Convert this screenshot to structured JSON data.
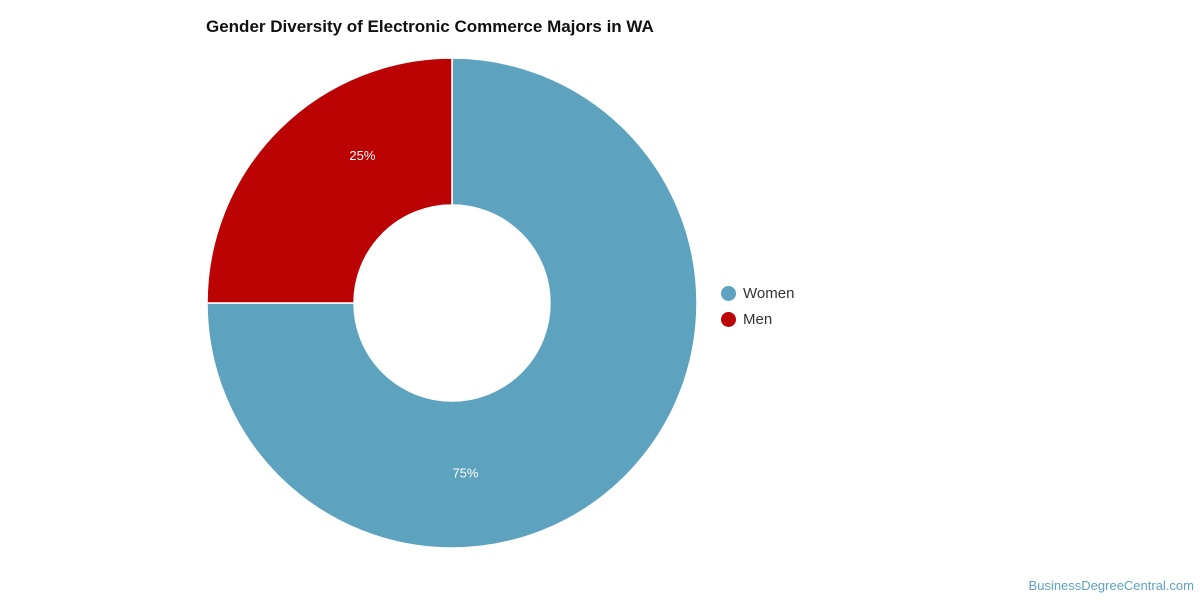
{
  "chart_data": {
    "type": "pie",
    "title": "Gender Diversity of Electronic Commerce Majors in WA",
    "slices": [
      {
        "name": "Women",
        "value": 75,
        "label": "75%",
        "color": "#5da2bf"
      },
      {
        "name": "Men",
        "value": 25,
        "label": "25%",
        "color": "#bb0303"
      }
    ],
    "donut": true,
    "legend_position": "right"
  },
  "source_credit": "BusinessDegreeCentral.com",
  "colors": {
    "source_credit": "#5da2bf"
  }
}
